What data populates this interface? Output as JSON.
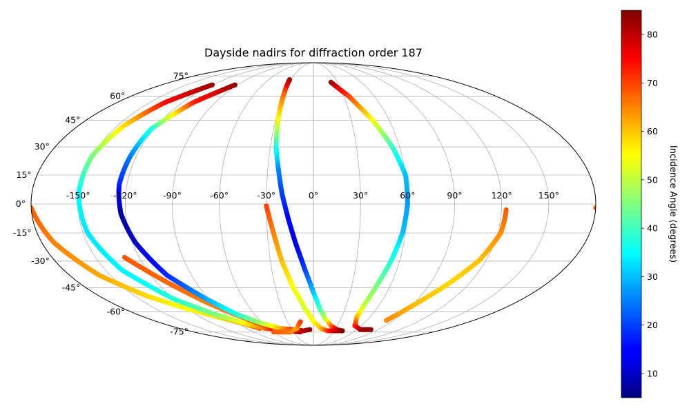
{
  "chart_data": {
    "type": "scatter",
    "projection": "mollweide",
    "title": "Dayside nadirs for diffraction order 187",
    "grid": true,
    "lon_ticks": [
      -150,
      -120,
      -90,
      -60,
      -30,
      0,
      30,
      60,
      90,
      120,
      150
    ],
    "lat_ticks": [
      -75,
      -60,
      -45,
      -30,
      -15,
      0,
      15,
      30,
      45,
      60,
      75
    ],
    "lon_tick_labels": [
      "-150°",
      "-120°",
      "-90°",
      "-60°",
      "-30°",
      "0°",
      "30°",
      "60°",
      "90°",
      "120°",
      "150°"
    ],
    "lat_tick_labels": [
      "-75°",
      "-60°",
      "-45°",
      "-30°",
      "-15°",
      "0°",
      "15°",
      "30°",
      "45°",
      "60°",
      "75°"
    ],
    "colorbar": {
      "label": "Incidence Angle (degrees)",
      "colormap": "jet",
      "range": [
        5,
        85
      ],
      "ticks": [
        10,
        20,
        30,
        40,
        50,
        60,
        70,
        80
      ],
      "tick_labels": [
        "10",
        "20",
        "30",
        "40",
        "50",
        "60",
        "70",
        "80"
      ]
    },
    "tracks": [
      {
        "points": [
          [
            -180,
            -2,
            68
          ],
          [
            -172,
            -20,
            65
          ],
          [
            -158,
            -38,
            62
          ],
          [
            -140,
            -50,
            58
          ],
          [
            -120,
            -58,
            55
          ],
          [
            -100,
            -64,
            58
          ],
          [
            -85,
            -68,
            62
          ],
          [
            -72,
            -72,
            68
          ]
        ]
      },
      {
        "points": [
          [
            -120,
            68,
            83
          ],
          [
            -136,
            56,
            75
          ],
          [
            -145,
            42,
            58
          ],
          [
            -150,
            25,
            45
          ],
          [
            -150,
            5,
            35
          ],
          [
            -147,
            -15,
            33
          ],
          [
            -138,
            -35,
            34
          ],
          [
            -120,
            -52,
            38
          ],
          [
            -100,
            -62,
            45
          ],
          [
            -82,
            -68,
            55
          ],
          [
            -65,
            -72,
            66
          ],
          [
            -50,
            -73,
            78
          ]
        ]
      },
      {
        "points": [
          [
            -130,
            -28,
            68
          ],
          [
            -112,
            -42,
            67
          ],
          [
            -95,
            -54,
            65
          ],
          [
            -80,
            -62,
            66
          ],
          [
            -65,
            -68,
            70
          ],
          [
            -50,
            -72,
            75
          ],
          [
            -35,
            -74,
            78
          ],
          [
            -20,
            -75,
            82
          ]
        ]
      },
      {
        "points": [
          [
            -93,
            68,
            84
          ],
          [
            -110,
            56,
            73
          ],
          [
            -122,
            40,
            38
          ],
          [
            -124,
            25,
            25
          ],
          [
            -125,
            10,
            18
          ],
          [
            -123,
            -5,
            7
          ],
          [
            -118,
            -20,
            10
          ],
          [
            -108,
            -38,
            18
          ],
          [
            -92,
            -52,
            28
          ],
          [
            -78,
            -62,
            38
          ],
          [
            -62,
            -68,
            48
          ],
          [
            -45,
            -72,
            60
          ],
          [
            -28,
            -73,
            72
          ],
          [
            -15,
            -74,
            80
          ],
          [
            -5,
            -73,
            84
          ]
        ]
      },
      {
        "points": [
          [
            -60,
            -75,
            68
          ],
          [
            -35,
            -75,
            66
          ],
          [
            -22,
            -72,
            62
          ],
          [
            -15,
            -67,
            70
          ]
        ]
      },
      {
        "points": [
          [
            -30,
            -1,
            70
          ],
          [
            -26,
            -15,
            65
          ],
          [
            -22,
            -30,
            60
          ],
          [
            -16,
            -45,
            55
          ],
          [
            -8,
            -58,
            52
          ],
          [
            0,
            -67,
            55
          ],
          [
            10,
            -72,
            60
          ],
          [
            20,
            -74,
            70
          ],
          [
            32,
            -74,
            82
          ],
          [
            40,
            -74,
            84
          ]
        ]
      },
      {
        "points": [
          [
            -32,
            72,
            84
          ],
          [
            -30,
            62,
            68
          ],
          [
            -28,
            45,
            55
          ],
          [
            -26,
            30,
            38
          ],
          [
            -23,
            18,
            26
          ],
          [
            -20,
            5,
            20
          ],
          [
            -16,
            -8,
            15
          ],
          [
            -12,
            -20,
            13
          ],
          [
            -6,
            -35,
            20
          ],
          [
            0,
            -48,
            30
          ],
          [
            6,
            -58,
            40
          ],
          [
            13,
            -65,
            50
          ],
          [
            22,
            -70,
            65
          ],
          [
            32,
            -73,
            78
          ],
          [
            42,
            -74,
            85
          ]
        ]
      },
      {
        "points": [
          [
            22,
            70,
            84
          ],
          [
            35,
            60,
            70
          ],
          [
            47,
            45,
            55
          ],
          [
            55,
            30,
            40
          ],
          [
            60,
            15,
            30
          ],
          [
            60,
            0,
            27
          ],
          [
            58,
            -15,
            30
          ],
          [
            54,
            -30,
            38
          ],
          [
            49,
            -45,
            45
          ],
          [
            46,
            -56,
            50
          ],
          [
            46,
            -64,
            60
          ],
          [
            52,
            -70,
            72
          ],
          [
            65,
            -73,
            82
          ],
          [
            80,
            -73,
            84
          ]
        ]
      },
      {
        "points": [
          [
            123,
            -3,
            68
          ],
          [
            122,
            -15,
            64
          ],
          [
            115,
            -30,
            60
          ],
          [
            104,
            -43,
            58
          ],
          [
            92,
            -55,
            60
          ],
          [
            82,
            -66,
            64
          ]
        ]
      },
      {
        "points": [
          [
            180,
            -2,
            68
          ]
        ]
      }
    ]
  }
}
